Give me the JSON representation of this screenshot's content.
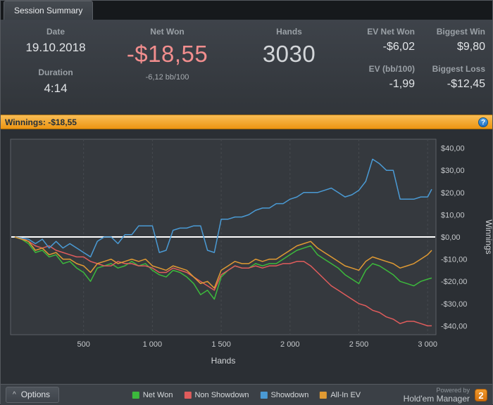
{
  "tab": {
    "label": "Session Summary"
  },
  "stats": {
    "date": {
      "label": "Date",
      "value": "19.10.2018"
    },
    "duration": {
      "label": "Duration",
      "value": "4:14"
    },
    "net_won": {
      "label": "Net Won",
      "value": "-$18,55",
      "sub": "-6,12 bb/100",
      "color": "#f28e8e"
    },
    "hands": {
      "label": "Hands",
      "value": "3030"
    },
    "ev_net_won": {
      "label": "EV Net Won",
      "value": "-$6,02"
    },
    "ev_bb100": {
      "label": "EV (bb/100)",
      "value": "-1,99"
    },
    "biggest_win": {
      "label": "Biggest Win",
      "value": "$9,80"
    },
    "biggest_loss": {
      "label": "Biggest Loss",
      "value": "-$12,45"
    }
  },
  "winnings_bar": {
    "label": "Winnings:  -$18,55",
    "help": "?"
  },
  "chart_data": {
    "type": "line",
    "title": "Winnings: -$18,55",
    "xlabel": "Hands",
    "ylabel": "Winnings",
    "xlim": [
      0,
      3040
    ],
    "ylim": [
      -44,
      44
    ],
    "x_ticks": [
      500,
      1000,
      1500,
      2000,
      2500,
      3000
    ],
    "x_tick_labels": [
      "500",
      "1 000",
      "1 500",
      "2 000",
      "2 500",
      "3 000"
    ],
    "y_ticks": [
      40,
      30,
      20,
      10,
      0,
      -10,
      -20,
      -30,
      -40
    ],
    "y_tick_labels": [
      "$40,00",
      "$30,00",
      "$20,00",
      "$10,00",
      "$0,00",
      "-$10,00",
      "-$20,00",
      "-$30,00",
      "-$40,00"
    ],
    "grid": "vertical-dashed",
    "zero_line_color": "#ffffff",
    "legend_position": "bottom",
    "x": [
      0,
      50,
      100,
      150,
      200,
      250,
      300,
      350,
      400,
      450,
      500,
      550,
      600,
      650,
      700,
      750,
      800,
      850,
      900,
      950,
      1000,
      1050,
      1100,
      1150,
      1200,
      1250,
      1300,
      1350,
      1400,
      1450,
      1500,
      1550,
      1600,
      1650,
      1700,
      1750,
      1800,
      1850,
      1900,
      1950,
      2000,
      2050,
      2100,
      2150,
      2200,
      2250,
      2300,
      2350,
      2400,
      2450,
      2500,
      2550,
      2600,
      2650,
      2700,
      2750,
      2800,
      2850,
      2900,
      2950,
      3000,
      3030
    ],
    "series": [
      {
        "name": "Net Won",
        "color": "#3cb93c",
        "y": [
          0,
          -1,
          -3,
          -7,
          -6,
          -9,
          -8,
          -12,
          -11,
          -14,
          -16,
          -20,
          -14,
          -13,
          -12,
          -14,
          -13,
          -11,
          -13,
          -12,
          -15,
          -17,
          -18,
          -15,
          -16,
          -18,
          -21,
          -26,
          -24,
          -28,
          -18,
          -15,
          -13,
          -14,
          -14,
          -12,
          -13,
          -12,
          -12,
          -10,
          -8,
          -6,
          -5,
          -4,
          -8,
          -10,
          -12,
          -14,
          -17,
          -19,
          -21,
          -15,
          -12,
          -13,
          -15,
          -17,
          -20,
          -21,
          -22,
          -20,
          -19,
          -18.5
        ]
      },
      {
        "name": "Non Showdown",
        "color": "#e05c5c",
        "y": [
          0,
          -0.5,
          -2,
          -4,
          -5,
          -4,
          -6,
          -7,
          -8,
          -9,
          -9,
          -11,
          -12,
          -13,
          -13,
          -11,
          -12,
          -12,
          -13,
          -13,
          -14,
          -16,
          -16,
          -14,
          -15,
          -16,
          -18,
          -20,
          -22,
          -24,
          -17,
          -15,
          -13,
          -14,
          -14,
          -13,
          -14,
          -13,
          -13,
          -12,
          -12,
          -11,
          -11,
          -13,
          -16,
          -19,
          -22,
          -24,
          -26,
          -28,
          -30,
          -31,
          -33,
          -34,
          -36,
          -37,
          -39,
          -38,
          -38,
          -39,
          -40,
          -40
        ]
      },
      {
        "name": "Showdown",
        "color": "#4a9ad4",
        "y": [
          0,
          -0.5,
          -1,
          -3,
          -1,
          -5,
          -2,
          -5,
          -3,
          -5,
          -7,
          -9,
          -2,
          0,
          0,
          -3,
          1,
          1,
          5,
          5,
          5,
          -7,
          -6,
          3,
          4,
          4,
          5,
          5,
          -6,
          -7,
          8,
          8,
          9,
          9,
          10,
          12,
          13,
          13,
          15,
          15,
          17,
          18,
          20,
          20,
          20,
          21,
          22,
          20,
          18,
          19,
          21,
          25,
          35,
          33,
          30,
          30,
          17,
          17,
          17,
          18,
          18,
          21.5
        ]
      },
      {
        "name": "All-In EV",
        "color": "#e09a33",
        "y": [
          0,
          -1,
          -2,
          -6,
          -5,
          -8,
          -7,
          -10,
          -10,
          -12,
          -13,
          -16,
          -12,
          -11,
          -10,
          -12,
          -11,
          -10,
          -11,
          -10,
          -13,
          -14,
          -15,
          -13,
          -14,
          -15,
          -18,
          -21,
          -20,
          -23,
          -15,
          -13,
          -11,
          -12,
          -12,
          -10,
          -11,
          -10,
          -10,
          -8,
          -6,
          -4,
          -3,
          -2,
          -5,
          -7,
          -9,
          -11,
          -13,
          -14,
          -15,
          -11,
          -9,
          -10,
          -11,
          -12,
          -14,
          -13,
          -12,
          -10,
          -8,
          -6
        ]
      }
    ]
  },
  "footer": {
    "collapse_icon": "^",
    "options_label": "Options",
    "powered_by": "Powered by",
    "brand": "Hold'em Manager",
    "brand_badge": "2"
  }
}
